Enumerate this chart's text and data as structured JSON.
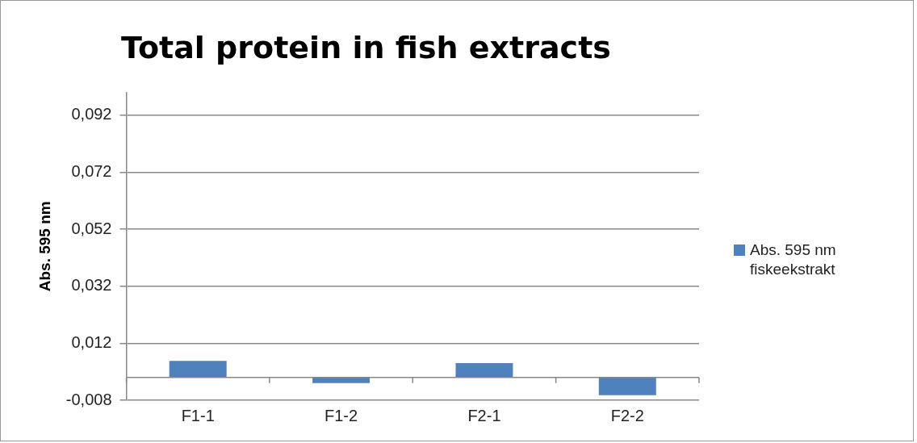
{
  "chart_data": {
    "type": "bar",
    "title": "Total protein in fish extracts",
    "ylabel": "Abs. 595 nm",
    "categories": [
      "F1-1",
      "F1-2",
      "F2-1",
      "F2-2"
    ],
    "series": [
      {
        "name": "Abs. 595 nm fiskeekstrakt",
        "color": "#4f81bd",
        "values": [
          0.0058,
          -0.002,
          0.005,
          -0.0062
        ]
      }
    ],
    "ylim": [
      -0.008,
      0.1
    ],
    "yticks": [
      {
        "value": -0.008,
        "label": "-0,008"
      },
      {
        "value": 0.012,
        "label": "0,012"
      },
      {
        "value": 0.032,
        "label": "0,032"
      },
      {
        "value": 0.052,
        "label": "0,052"
      },
      {
        "value": 0.072,
        "label": "0,072"
      },
      {
        "value": 0.092,
        "label": "0,092"
      }
    ],
    "grid": "y",
    "legend": "right"
  }
}
